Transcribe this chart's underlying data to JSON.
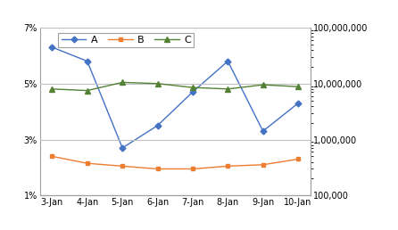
{
  "x_labels": [
    "3-Jan",
    "4-Jan",
    "5-Jan",
    "6-Jan",
    "7-Jan",
    "8-Jan",
    "9-Jan",
    "10-Jan"
  ],
  "x_values": [
    0,
    1,
    2,
    3,
    4,
    5,
    6,
    7
  ],
  "series_A": [
    6.3,
    5.8,
    2.7,
    3.5,
    4.7,
    5.8,
    3.3,
    4.3
  ],
  "series_B": [
    2.4,
    2.15,
    2.05,
    1.95,
    1.95,
    2.05,
    2.1,
    2.3
  ],
  "series_C_right": [
    8000000,
    7500000,
    10500000,
    10000000,
    8500000,
    8000000,
    9500000,
    8800000
  ],
  "color_A": "#4472C4",
  "color_B": "#ED7D31",
  "color_C": "#548235",
  "ylim_left": [
    1,
    7
  ],
  "ylim_right": [
    100000,
    100000000
  ],
  "yticks_left": [
    1,
    3,
    5,
    7
  ],
  "ytick_labels_left": [
    "1%",
    "3%",
    "5%",
    "7%"
  ],
  "yticks_right": [
    100000,
    1000000,
    10000000,
    100000000
  ],
  "ytick_labels_right": [
    "100,000",
    "1,000,000",
    "10,000,000",
    "100,000,000"
  ],
  "legend_labels": [
    "A",
    "B",
    "C"
  ],
  "background_color": "#FFFFFF",
  "grid_color": "#C0C0C0",
  "font_size": 7
}
